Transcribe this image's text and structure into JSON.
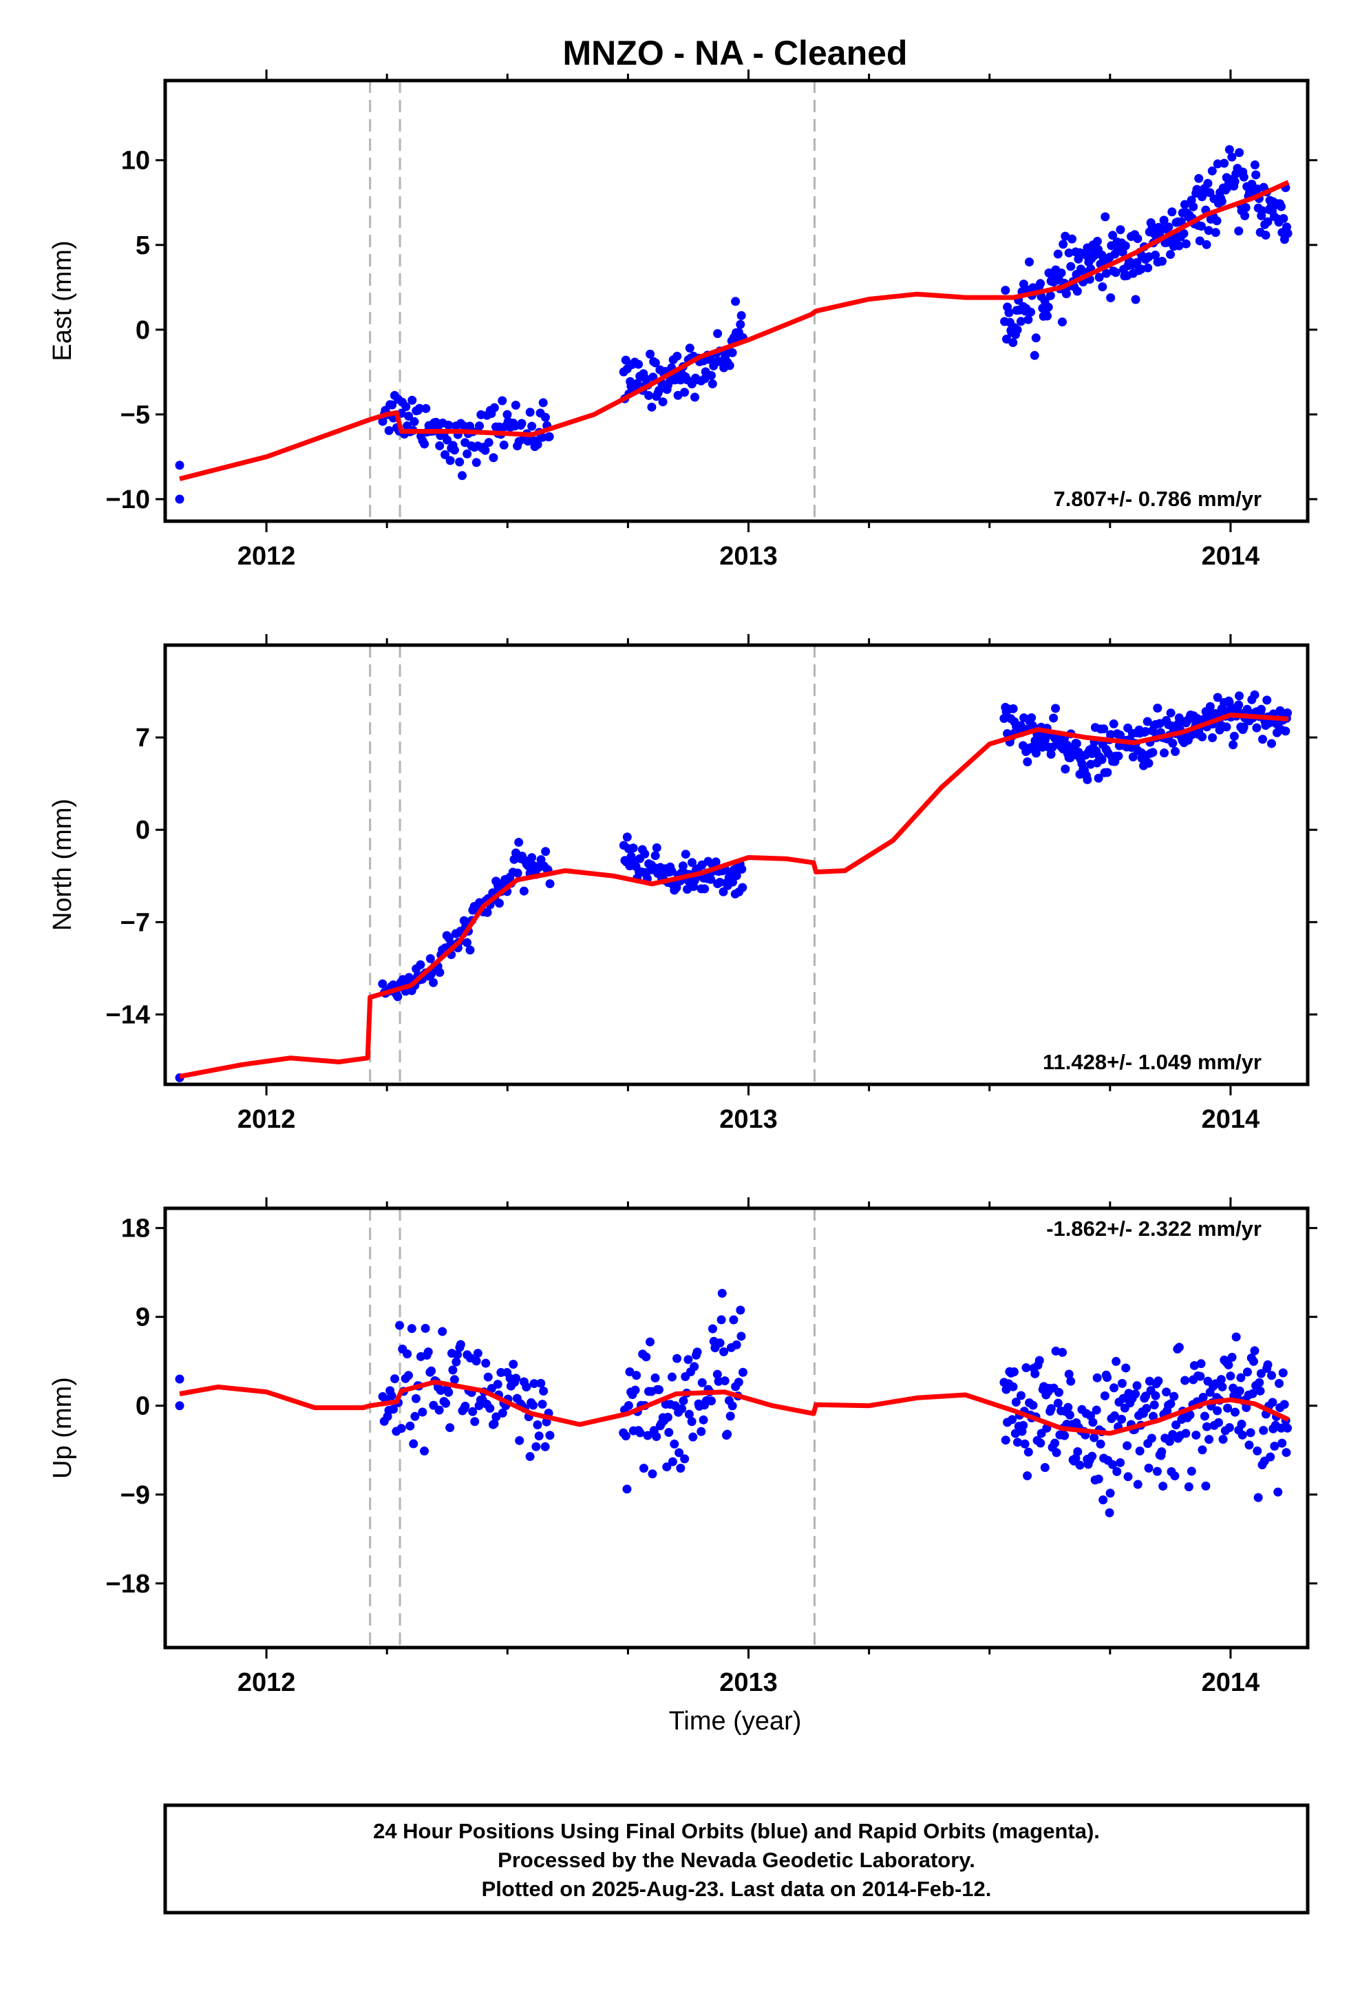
{
  "title": "MNZO  - NA - Cleaned",
  "xlabel": "Time (year)",
  "footer": {
    "line1": "24 Hour Positions Using Final Orbits (blue) and Rapid Orbits (magenta).",
    "line2": "Processed by the Nevada Geodetic Laboratory.",
    "line3": "Plotted on 2025-Aug-23. Last data on 2014-Feb-12."
  },
  "colors": {
    "data": "#0000ff",
    "model": "#ff0000",
    "break_lines": "#b4b4b4",
    "frame": "#000000"
  },
  "chart_data": [
    {
      "type": "scatter",
      "ylabel": "East (mm)",
      "rate_label": "7.807+/- 0.786 mm/yr",
      "xlim": [
        2011.79,
        2014.16
      ],
      "ylim": [
        -11.3,
        14.7
      ],
      "yticks": [
        -10,
        -5,
        0,
        5,
        10
      ],
      "xticks": [
        2012,
        2013,
        2014
      ],
      "grid": false,
      "breaks": [
        2012.215,
        2012.277,
        2013.137
      ],
      "data_segments": [
        {
          "start": 2011.82,
          "end": 2011.83,
          "n": 2,
          "points": [
            [
              2011.82,
              -8.0
            ],
            [
              2011.82,
              -10.0
            ]
          ]
        },
        {
          "start": 2012.24,
          "end": 2012.59,
          "n": 110,
          "trend": [
            [
              2012.24,
              -4.6
            ],
            [
              2012.33,
              -5.4
            ],
            [
              2012.42,
              -7.0
            ],
            [
              2012.48,
              -5.6
            ],
            [
              2012.59,
              -6.0
            ]
          ],
          "spread": 1.4
        },
        {
          "start": 2012.74,
          "end": 2012.99,
          "n": 95,
          "trend": [
            [
              2012.74,
              -3.2
            ],
            [
              2012.85,
              -2.8
            ],
            [
              2012.95,
              -1.6
            ],
            [
              2012.99,
              0.5
            ]
          ],
          "spread": 1.3
        },
        {
          "start": 2013.53,
          "end": 2014.12,
          "n": 260,
          "trend": [
            [
              2013.53,
              0.5
            ],
            [
              2013.7,
              3.8
            ],
            [
              2013.85,
              4.8
            ],
            [
              2014.0,
              8.5
            ],
            [
              2014.12,
              6.5
            ]
          ],
          "spread": 1.7
        }
      ],
      "model": [
        [
          2011.82,
          -8.8
        ],
        [
          2012.0,
          -7.5
        ],
        [
          2012.215,
          -5.3
        ],
        [
          2012.25,
          -5.0
        ],
        [
          2012.27,
          -4.9
        ],
        [
          2012.28,
          -6.0
        ],
        [
          2012.4,
          -6.0
        ],
        [
          2012.55,
          -6.2
        ],
        [
          2012.68,
          -5.0
        ],
        [
          2012.8,
          -3.2
        ],
        [
          2012.9,
          -1.6
        ],
        [
          2013.0,
          -0.6
        ],
        [
          2013.13,
          0.9
        ],
        [
          2013.14,
          1.1
        ],
        [
          2013.25,
          1.8
        ],
        [
          2013.35,
          2.1
        ],
        [
          2013.45,
          1.9
        ],
        [
          2013.55,
          1.9
        ],
        [
          2013.65,
          2.5
        ],
        [
          2013.8,
          4.5
        ],
        [
          2013.95,
          6.8
        ],
        [
          2014.05,
          7.8
        ],
        [
          2014.12,
          8.7
        ]
      ]
    },
    {
      "type": "scatter",
      "ylabel": "North (mm)",
      "rate_label": "11.428+/- 1.049 mm/yr",
      "xlim": [
        2011.79,
        2014.16
      ],
      "ylim": [
        -19.3,
        14.0
      ],
      "yticks": [
        -14,
        -7,
        0,
        7
      ],
      "xticks": [
        2012,
        2013,
        2014
      ],
      "grid": false,
      "breaks": [
        2012.215,
        2012.277,
        2013.137
      ],
      "data_segments": [
        {
          "start": 2011.82,
          "end": 2011.83,
          "n": 1,
          "points": [
            [
              2011.82,
              -18.8
            ]
          ]
        },
        {
          "start": 2012.24,
          "end": 2012.59,
          "n": 110,
          "trend": [
            [
              2012.24,
              -12.5
            ],
            [
              2012.35,
              -10.5
            ],
            [
              2012.45,
              -6.0
            ],
            [
              2012.52,
              -3.0
            ],
            [
              2012.59,
              -2.5
            ]
          ],
          "spread": 1.2
        },
        {
          "start": 2012.74,
          "end": 2012.99,
          "n": 95,
          "trend": [
            [
              2012.74,
              -2.0
            ],
            [
              2012.85,
              -3.5
            ],
            [
              2012.99,
              -3.5
            ]
          ],
          "spread": 1.2
        },
        {
          "start": 2013.53,
          "end": 2014.12,
          "n": 260,
          "trend": [
            [
              2013.53,
              8.0
            ],
            [
              2013.7,
              5.5
            ],
            [
              2013.85,
              7.0
            ],
            [
              2014.0,
              9.0
            ],
            [
              2014.12,
              8.0
            ]
          ],
          "spread": 1.6
        }
      ],
      "model": [
        [
          2011.82,
          -18.7
        ],
        [
          2011.95,
          -17.8
        ],
        [
          2012.05,
          -17.3
        ],
        [
          2012.15,
          -17.6
        ],
        [
          2012.21,
          -17.3
        ],
        [
          2012.215,
          -12.7
        ],
        [
          2012.3,
          -11.8
        ],
        [
          2012.4,
          -8.5
        ],
        [
          2012.45,
          -5.8
        ],
        [
          2012.52,
          -3.8
        ],
        [
          2012.62,
          -3.1
        ],
        [
          2012.72,
          -3.5
        ],
        [
          2012.8,
          -4.1
        ],
        [
          2012.9,
          -3.3
        ],
        [
          2013.0,
          -2.1
        ],
        [
          2013.08,
          -2.2
        ],
        [
          2013.135,
          -2.5
        ],
        [
          2013.14,
          -3.2
        ],
        [
          2013.2,
          -3.1
        ],
        [
          2013.3,
          -0.8
        ],
        [
          2013.4,
          3.2
        ],
        [
          2013.5,
          6.5
        ],
        [
          2013.6,
          7.6
        ],
        [
          2013.7,
          7.0
        ],
        [
          2013.8,
          6.6
        ],
        [
          2013.9,
          7.4
        ],
        [
          2014.0,
          8.7
        ],
        [
          2014.12,
          8.4
        ]
      ]
    },
    {
      "type": "scatter",
      "ylabel": "Up (mm)",
      "rate_label": "-1.862+/- 2.322 mm/yr",
      "xlim": [
        2011.79,
        2014.16
      ],
      "ylim": [
        -24.5,
        20.0
      ],
      "yticks": [
        -18,
        -9,
        0,
        9,
        18
      ],
      "xticks": [
        2012,
        2013,
        2014
      ],
      "grid": false,
      "breaks": [
        2012.215,
        2012.277,
        2013.137
      ],
      "data_segments": [
        {
          "start": 2011.82,
          "end": 2011.83,
          "n": 2,
          "points": [
            [
              2011.82,
              2.7
            ],
            [
              2011.82,
              0.0
            ]
          ]
        },
        {
          "start": 2012.24,
          "end": 2012.59,
          "n": 110,
          "trend": [
            [
              2012.24,
              1.5
            ],
            [
              2012.4,
              3.0
            ],
            [
              2012.59,
              -3.0
            ]
          ],
          "spread": 4.8
        },
        {
          "start": 2012.74,
          "end": 2012.99,
          "n": 95,
          "trend": [
            [
              2012.74,
              -2.0
            ],
            [
              2012.85,
              -1.0
            ],
            [
              2012.99,
              6.0
            ]
          ],
          "spread": 6.5
        },
        {
          "start": 2013.53,
          "end": 2014.12,
          "n": 260,
          "trend": [
            [
              2013.53,
              -1.0
            ],
            [
              2013.75,
              -2.5
            ],
            [
              2014.0,
              0.0
            ],
            [
              2014.12,
              -2.0
            ]
          ],
          "spread": 5.8
        }
      ],
      "model": [
        [
          2011.82,
          1.2
        ],
        [
          2011.9,
          1.9
        ],
        [
          2012.0,
          1.4
        ],
        [
          2012.1,
          -0.2
        ],
        [
          2012.2,
          -0.2
        ],
        [
          2012.215,
          0.0
        ],
        [
          2012.27,
          0.4
        ],
        [
          2012.28,
          1.5
        ],
        [
          2012.35,
          2.4
        ],
        [
          2012.45,
          1.5
        ],
        [
          2012.55,
          -0.8
        ],
        [
          2012.65,
          -1.9
        ],
        [
          2012.75,
          -0.8
        ],
        [
          2012.85,
          1.2
        ],
        [
          2012.95,
          1.4
        ],
        [
          2013.05,
          0.0
        ],
        [
          2013.135,
          -0.8
        ],
        [
          2013.14,
          0.1
        ],
        [
          2013.25,
          0.0
        ],
        [
          2013.35,
          0.8
        ],
        [
          2013.45,
          1.1
        ],
        [
          2013.55,
          -0.5
        ],
        [
          2013.65,
          -2.3
        ],
        [
          2013.75,
          -2.8
        ],
        [
          2013.85,
          -1.5
        ],
        [
          2013.95,
          0.3
        ],
        [
          2014.0,
          0.6
        ],
        [
          2014.05,
          0.2
        ],
        [
          2014.12,
          -1.4
        ]
      ]
    }
  ]
}
